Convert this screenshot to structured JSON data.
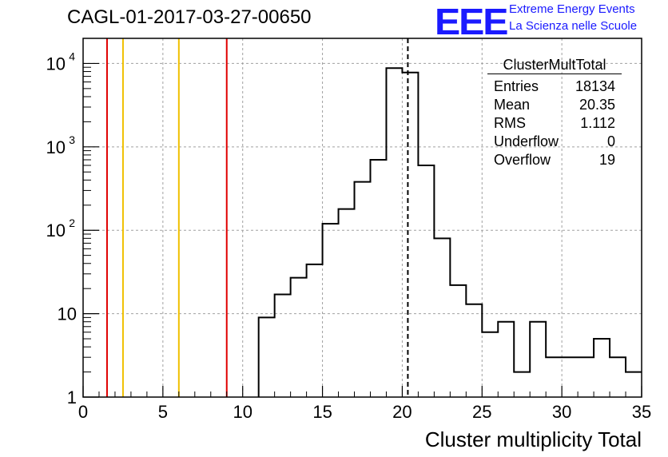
{
  "header": {
    "title": "CAGL-01-2017-03-27-00650",
    "logo_text": "EEE",
    "brand_line1": "Extreme Energy Events",
    "brand_line2": "La Scienza nelle Scuole"
  },
  "stats_box": {
    "title": "ClusterMultTotal",
    "rows": [
      {
        "label": "Entries",
        "value": "18134"
      },
      {
        "label": "Mean",
        "value": "20.35"
      },
      {
        "label": "RMS",
        "value": "1.112"
      },
      {
        "label": "Underflow",
        "value": "0"
      },
      {
        "label": "Overflow",
        "value": "19"
      }
    ]
  },
  "colors": {
    "accent": "#1a1aff",
    "red_line": "#e00000",
    "yellow_line": "#f0c000",
    "grid": "#a0a0a0"
  },
  "chart_data": {
    "type": "histogram",
    "title": "CAGL-01-2017-03-27-00650",
    "xlabel": "Cluster multiplicity Total",
    "ylabel": "",
    "y_scale": "log",
    "xlim": [
      0,
      35
    ],
    "ylim": [
      1,
      20000
    ],
    "grid": true,
    "x_ticks": [
      0,
      5,
      10,
      15,
      20,
      25,
      30,
      35
    ],
    "y_ticks": [
      {
        "value": 1,
        "base": "1",
        "exp": ""
      },
      {
        "value": 10,
        "base": "10",
        "exp": ""
      },
      {
        "value": 100,
        "base": "10",
        "exp": "2"
      },
      {
        "value": 1000,
        "base": "10",
        "exp": "3"
      },
      {
        "value": 10000,
        "base": "10",
        "exp": "4"
      }
    ],
    "bins": [
      {
        "x": 11.5,
        "y": 9
      },
      {
        "x": 12.5,
        "y": 17
      },
      {
        "x": 13.5,
        "y": 27
      },
      {
        "x": 14.5,
        "y": 39
      },
      {
        "x": 15.5,
        "y": 120
      },
      {
        "x": 16.5,
        "y": 180
      },
      {
        "x": 17.5,
        "y": 380
      },
      {
        "x": 18.5,
        "y": 700
      },
      {
        "x": 19.5,
        "y": 8800
      },
      {
        "x": 20.5,
        "y": 7800
      },
      {
        "x": 21.5,
        "y": 600
      },
      {
        "x": 22.5,
        "y": 80
      },
      {
        "x": 23.5,
        "y": 22
      },
      {
        "x": 24.5,
        "y": 13
      },
      {
        "x": 25.5,
        "y": 6
      },
      {
        "x": 26.5,
        "y": 8
      },
      {
        "x": 27.5,
        "y": 2
      },
      {
        "x": 28.5,
        "y": 8
      },
      {
        "x": 29.5,
        "y": 3
      },
      {
        "x": 30.5,
        "y": 3
      },
      {
        "x": 31.5,
        "y": 3
      },
      {
        "x": 32.5,
        "y": 5
      },
      {
        "x": 33.5,
        "y": 3
      },
      {
        "x": 34.5,
        "y": 2
      }
    ],
    "bin_width": 1,
    "vertical_lines": [
      {
        "x": 1.5,
        "color": "red"
      },
      {
        "x": 2.5,
        "color": "yellow"
      },
      {
        "x": 6.0,
        "color": "yellow"
      },
      {
        "x": 9.0,
        "color": "red"
      }
    ],
    "mean_line": 20.35
  }
}
